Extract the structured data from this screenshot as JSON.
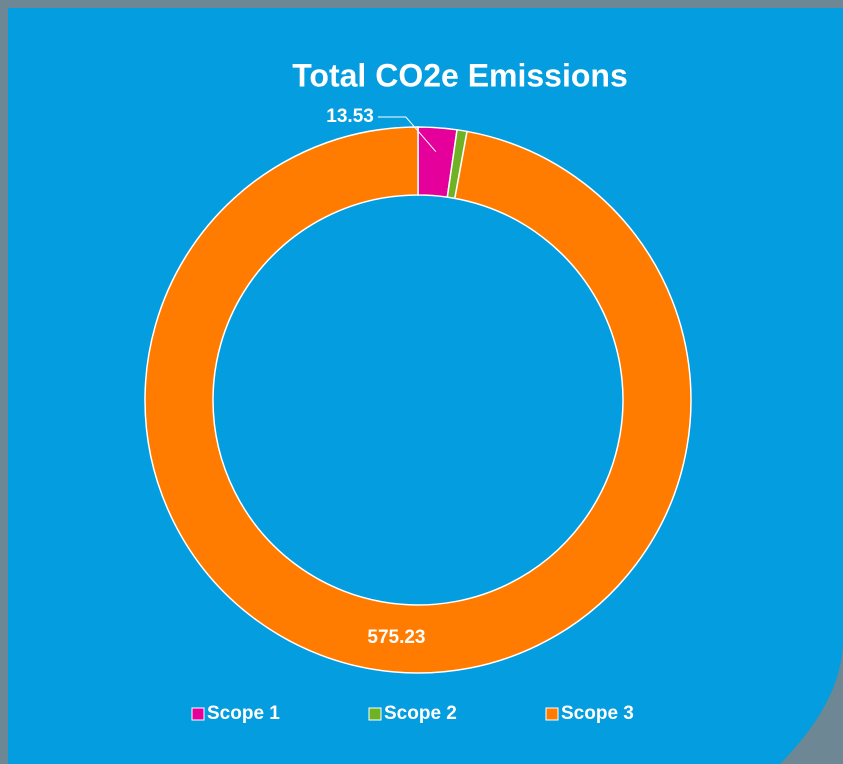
{
  "chart_data": {
    "type": "donut",
    "title": "Total CO2e Emissions",
    "categories": [
      "Scope 1",
      "Scope 2",
      "Scope 3"
    ],
    "values": [
      13.53,
      3.5,
      575.23
    ],
    "colors": [
      "#e5009b",
      "#6fb324",
      "#ff7c00"
    ],
    "legend": "bottom"
  }
}
